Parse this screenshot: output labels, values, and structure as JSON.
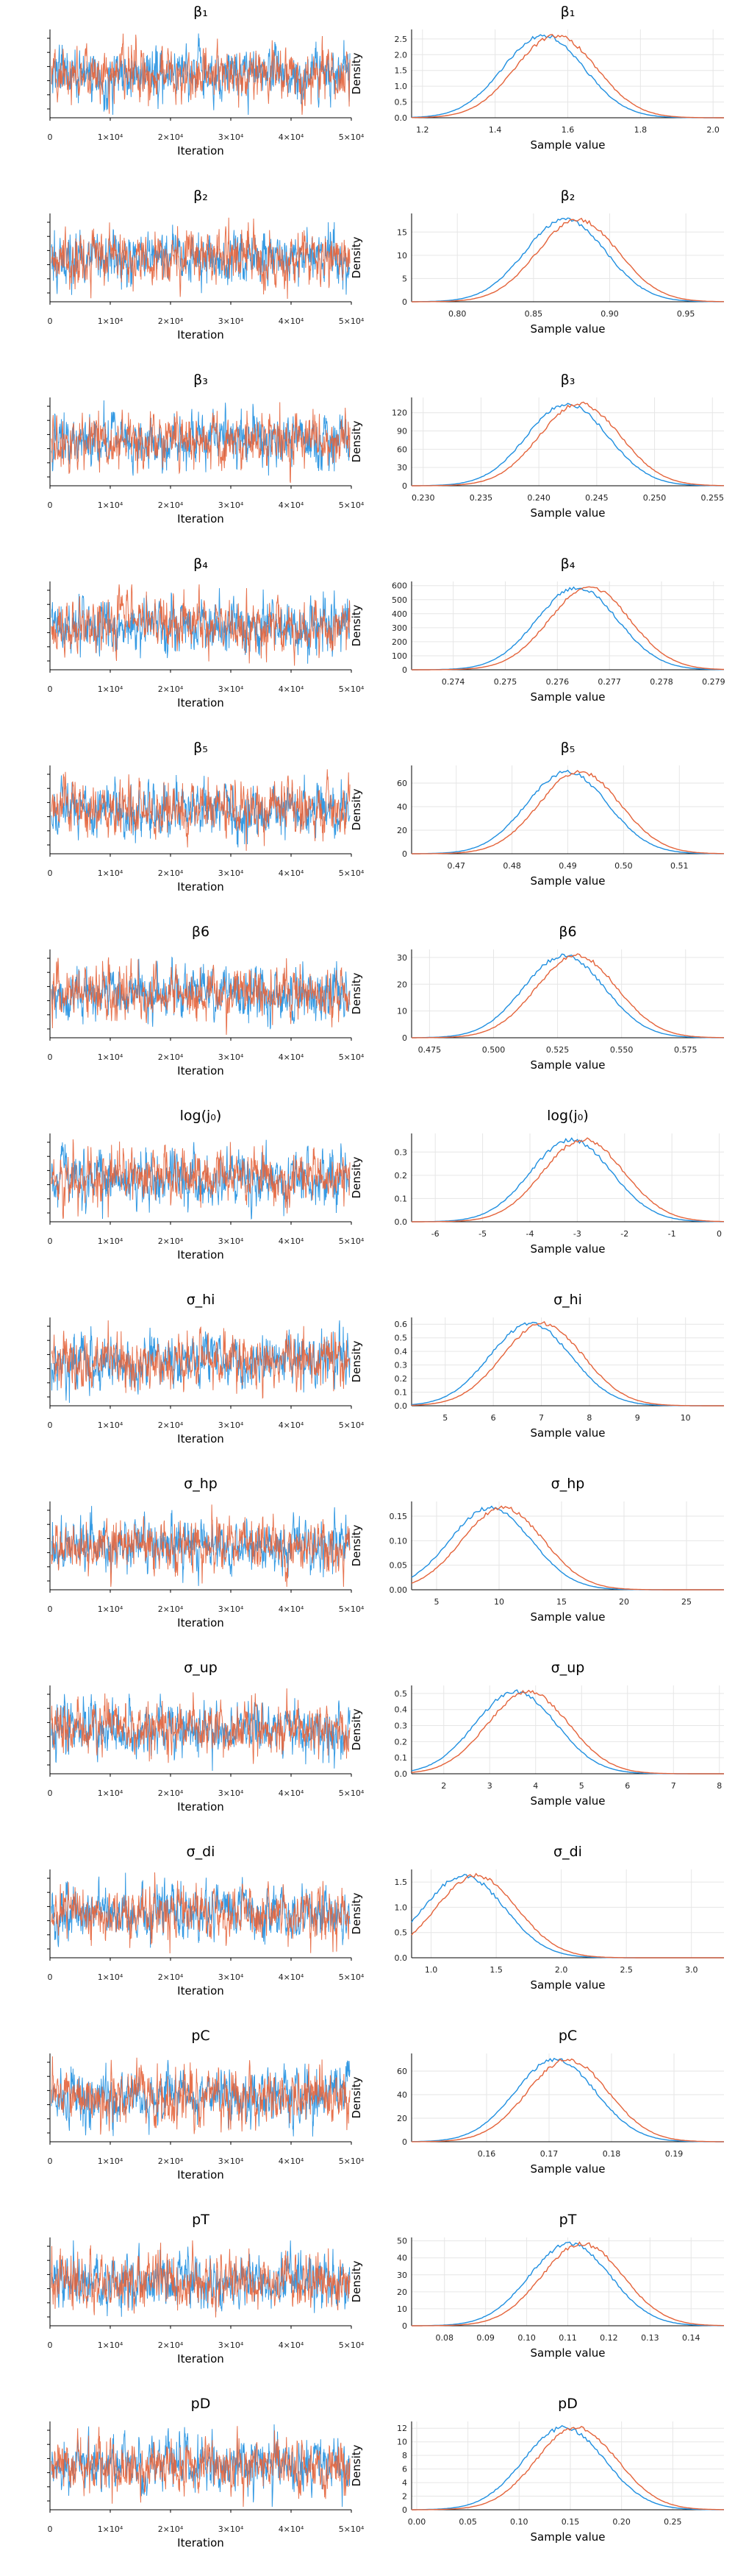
{
  "chart_data": {
    "type": "line",
    "layout": "14 rows × 2 columns: trace plot (left) and density plot (right) per parameter",
    "series_colors": [
      "#1f8fe0",
      "#e4633a"
    ],
    "grid": true,
    "trace_xlabel": "Iteration",
    "density_xlabel": "Sample value",
    "density_ylabel": "Density",
    "trace_xtick_labels": [
      "0",
      "1×10⁴",
      "2×10⁴",
      "3×10⁴",
      "4×10⁴",
      "5×10⁴"
    ],
    "trace_xlim": [
      0,
      50000
    ],
    "panels": [
      {
        "name": "β₁",
        "density_xlim": [
          1.17,
          2.03
        ],
        "density_xticks": [
          "1.2",
          "1.4",
          "1.6",
          "1.8",
          "2.0"
        ],
        "density_ylim": [
          0,
          2.8
        ],
        "density_yticks": [
          "0.0",
          "0.5",
          "1.0",
          "1.5",
          "2.0",
          "2.5"
        ],
        "peak": 1.55
      },
      {
        "name": "β₂",
        "density_xlim": [
          0.77,
          0.975
        ],
        "density_xticks": [
          "0.80",
          "0.85",
          "0.90",
          "0.95"
        ],
        "density_ylim": [
          0,
          19
        ],
        "density_yticks": [
          "0",
          "5",
          "10",
          "15"
        ],
        "peak": 0.875
      },
      {
        "name": "β₃",
        "density_xlim": [
          0.229,
          0.256
        ],
        "density_xticks": [
          "0.230",
          "0.235",
          "0.240",
          "0.245",
          "0.250",
          "0.255"
        ],
        "density_ylim": [
          0,
          145
        ],
        "density_yticks": [
          "0",
          "30",
          "60",
          "90",
          "120"
        ],
        "peak": 0.243
      },
      {
        "name": "β₄",
        "density_xlim": [
          0.2732,
          0.2792
        ],
        "density_xticks": [
          "0.274",
          "0.275",
          "0.276",
          "0.277",
          "0.278",
          "0.279"
        ],
        "density_ylim": [
          0,
          630
        ],
        "density_yticks": [
          "0",
          "100",
          "200",
          "300",
          "400",
          "500",
          "600"
        ],
        "peak": 0.2765
      },
      {
        "name": "β₅",
        "density_xlim": [
          0.462,
          0.518
        ],
        "density_xticks": [
          "0.47",
          "0.48",
          "0.49",
          "0.50",
          "0.51"
        ],
        "density_ylim": [
          0,
          75
        ],
        "density_yticks": [
          "0",
          "20",
          "40",
          "60"
        ],
        "peak": 0.491
      },
      {
        "name": "β6",
        "density_xlim": [
          0.468,
          0.59
        ],
        "density_xticks": [
          "0.475",
          "0.500",
          "0.525",
          "0.550",
          "0.575"
        ],
        "density_ylim": [
          0,
          33
        ],
        "density_yticks": [
          "0",
          "10",
          "20",
          "30"
        ],
        "peak": 0.53
      },
      {
        "name": "log(j₀)",
        "density_xlim": [
          -6.5,
          0.1
        ],
        "density_xticks": [
          "-6",
          "-5",
          "-4",
          "-3",
          "-2",
          "-1",
          "0"
        ],
        "density_ylim": [
          0,
          0.38
        ],
        "density_yticks": [
          "0.0",
          "0.1",
          "0.2",
          "0.3"
        ],
        "peak": -3.0
      },
      {
        "name": "σ_hi",
        "density_xlim": [
          4.3,
          10.8
        ],
        "density_xticks": [
          "5",
          "6",
          "7",
          "8",
          "9",
          "10"
        ],
        "density_ylim": [
          0,
          0.65
        ],
        "density_yticks": [
          "0.0",
          "0.1",
          "0.2",
          "0.3",
          "0.4",
          "0.5",
          "0.6"
        ],
        "peak": 6.9
      },
      {
        "name": "σ_hp",
        "density_xlim": [
          3,
          28
        ],
        "density_xticks": [
          "5",
          "10",
          "15",
          "20",
          "25"
        ],
        "density_ylim": [
          0,
          0.18
        ],
        "density_yticks": [
          "0.00",
          "0.05",
          "0.10",
          "0.15"
        ],
        "peak": 9.8
      },
      {
        "name": "σ_up",
        "density_xlim": [
          1.3,
          8.1
        ],
        "density_xticks": [
          "2",
          "3",
          "4",
          "5",
          "6",
          "7",
          "8"
        ],
        "density_ylim": [
          0,
          0.55
        ],
        "density_yticks": [
          "0.0",
          "0.1",
          "0.2",
          "0.3",
          "0.4",
          "0.5"
        ],
        "peak": 3.7
      },
      {
        "name": "σ_di",
        "density_xlim": [
          0.85,
          3.25
        ],
        "density_xticks": [
          "1.0",
          "1.5",
          "2.0",
          "2.5",
          "3.0"
        ],
        "density_ylim": [
          0,
          1.75
        ],
        "density_yticks": [
          "0.0",
          "0.5",
          "1.0",
          "1.5"
        ],
        "peak": 1.3
      },
      {
        "name": "pC",
        "density_xlim": [
          0.148,
          0.198
        ],
        "density_xticks": [
          "0.16",
          "0.17",
          "0.18",
          "0.19"
        ],
        "density_ylim": [
          0,
          75
        ],
        "density_yticks": [
          "0",
          "20",
          "40",
          "60"
        ],
        "peak": 0.172
      },
      {
        "name": "pT",
        "density_xlim": [
          0.072,
          0.148
        ],
        "density_xticks": [
          "0.08",
          "0.09",
          "0.10",
          "0.11",
          "0.12",
          "0.13",
          "0.14"
        ],
        "density_ylim": [
          0,
          52
        ],
        "density_yticks": [
          "0",
          "10",
          "20",
          "30",
          "40",
          "50"
        ],
        "peak": 0.112
      },
      {
        "name": "pD",
        "density_xlim": [
          -0.005,
          0.3
        ],
        "density_xticks": [
          "0.00",
          "0.05",
          "0.10",
          "0.15",
          "0.20",
          "0.25"
        ],
        "density_ylim": [
          0,
          13
        ],
        "density_yticks": [
          "0",
          "2",
          "4",
          "6",
          "8",
          "10",
          "12"
        ],
        "peak": 0.15
      }
    ]
  }
}
